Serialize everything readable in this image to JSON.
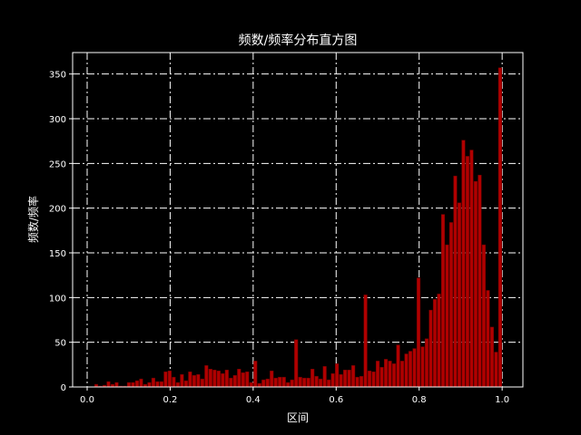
{
  "chart_data": {
    "type": "bar",
    "title": "频数/频率分布直方图",
    "xlabel": "区间",
    "ylabel": "频数/频率",
    "xlim": [
      -0.035,
      1.05
    ],
    "ylim": [
      0,
      374
    ],
    "bin_start": 0.017,
    "bin_end": 1.0,
    "xticks": [
      "0.0",
      "0.2",
      "0.4",
      "0.6",
      "0.8",
      "1.0"
    ],
    "xtick_values": [
      0,
      0.2,
      0.4,
      0.6,
      0.8,
      1.0
    ],
    "yticks": [
      0,
      50,
      100,
      150,
      200,
      250,
      300,
      350
    ],
    "grid": true,
    "grid_style": "dash-dot",
    "colors": {
      "background": "#000000",
      "bar": "#b00000",
      "bar_edge": "#6a0000",
      "grid": "#ffffff",
      "text": "#ffffff"
    },
    "values": [
      3,
      1,
      2,
      6,
      3,
      5,
      1,
      1,
      5,
      5,
      7,
      9,
      3,
      5,
      10,
      6,
      6,
      17,
      18,
      11,
      5,
      14,
      7,
      17,
      13,
      14,
      9,
      24,
      20,
      19,
      18,
      15,
      19,
      10,
      13,
      20,
      16,
      17,
      5,
      29,
      4,
      8,
      9,
      18,
      10,
      11,
      11,
      5,
      8,
      53,
      11,
      10,
      10,
      20,
      12,
      9,
      23,
      8,
      15,
      26,
      14,
      19,
      19,
      24,
      11,
      12,
      103,
      18,
      17,
      29,
      22,
      31,
      29,
      26,
      47,
      29,
      37,
      40,
      43,
      122,
      45,
      54,
      86,
      98,
      104,
      193,
      159,
      184,
      236,
      206,
      276,
      258,
      265,
      230,
      237,
      159,
      108,
      67,
      39,
      357
    ]
  }
}
